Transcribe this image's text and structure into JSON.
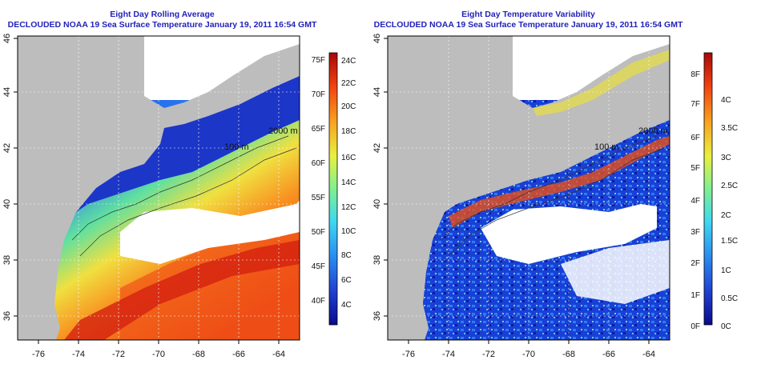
{
  "panels": [
    {
      "title_line1": "Eight Day Rolling Average",
      "title_line2": "DECLOUDED NOAA 19 Sea Surface Temperature January 19, 2011 16:54 GMT"
    },
    {
      "title_line1": "Eight Day Temperature Variability",
      "title_line2": "DECLOUDED NOAA 19 Sea Surface Temperature January 19, 2011 16:54 GMT"
    }
  ],
  "axes": {
    "lon_ticks": [
      "-76",
      "-74",
      "-72",
      "-70",
      "-68",
      "-66",
      "-64"
    ],
    "lat_ticks": [
      "36",
      "38",
      "40",
      "42",
      "44",
      "46"
    ]
  },
  "contour_labels": [
    "100 m",
    "2000 m"
  ],
  "colorbar_sst": {
    "fahrenheit": [
      "75F",
      "70F",
      "65F",
      "60F",
      "55F",
      "50F",
      "45F",
      "40F"
    ],
    "celsius": [
      "24C",
      "22C",
      "20C",
      "18C",
      "16C",
      "14C",
      "12C",
      "10C",
      "8C",
      "6C",
      "4C"
    ]
  },
  "colorbar_var": {
    "fahrenheit": [
      "8F",
      "7F",
      "6F",
      "5F",
      "4F",
      "3F",
      "2F",
      "1F",
      "0F"
    ],
    "celsius": [
      "4C",
      "3.5C",
      "3C",
      "2.5C",
      "2C",
      "1.5C",
      "1C",
      "0.5C",
      "0C"
    ]
  },
  "colors": {
    "land": "#bdbdbd",
    "cloud": "#ffffff",
    "title": "#2222bb",
    "colormap": [
      "#0a0a8c",
      "#1f3fd0",
      "#2a8cf0",
      "#3fd8f0",
      "#7ff090",
      "#e8f040",
      "#f8a020",
      "#f04010",
      "#a80808"
    ]
  }
}
